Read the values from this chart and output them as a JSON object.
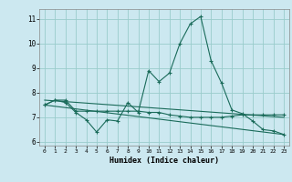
{
  "xlabel": "Humidex (Indice chaleur)",
  "bg_color": "#cce8f0",
  "grid_color": "#99cccc",
  "line_color": "#1a6b5a",
  "xlim": [
    -0.5,
    23.5
  ],
  "ylim": [
    5.85,
    11.4
  ],
  "xticks": [
    0,
    1,
    2,
    3,
    4,
    5,
    6,
    7,
    8,
    9,
    10,
    11,
    12,
    13,
    14,
    15,
    16,
    17,
    18,
    19,
    20,
    21,
    22,
    23
  ],
  "yticks": [
    6,
    7,
    8,
    9,
    10,
    11
  ],
  "line1_x": [
    0,
    1,
    2,
    3,
    4,
    5,
    6,
    7,
    8,
    9,
    10,
    11,
    12,
    13,
    14,
    15,
    16,
    17,
    18,
    19,
    20,
    21,
    22,
    23
  ],
  "line1_y": [
    7.5,
    7.7,
    7.6,
    7.2,
    6.9,
    6.4,
    6.9,
    6.85,
    7.6,
    7.2,
    8.9,
    8.45,
    8.8,
    10.0,
    10.8,
    11.1,
    9.3,
    8.4,
    7.3,
    7.15,
    6.85,
    6.5,
    6.45,
    6.3
  ],
  "line2_x": [
    0,
    1,
    2,
    3,
    4,
    5,
    6,
    7,
    8,
    9,
    10,
    11,
    12,
    13,
    14,
    15,
    16,
    17,
    18,
    19,
    20,
    21,
    22,
    23
  ],
  "line2_y": [
    7.5,
    7.7,
    7.7,
    7.25,
    7.25,
    7.25,
    7.25,
    7.25,
    7.25,
    7.25,
    7.2,
    7.2,
    7.1,
    7.05,
    7.0,
    7.0,
    7.0,
    7.0,
    7.05,
    7.1,
    7.1,
    7.1,
    7.1,
    7.1
  ],
  "line3_x": [
    0,
    23
  ],
  "line3_y": [
    7.7,
    7.0
  ],
  "line4_x": [
    0,
    23
  ],
  "line4_y": [
    7.5,
    6.3
  ]
}
